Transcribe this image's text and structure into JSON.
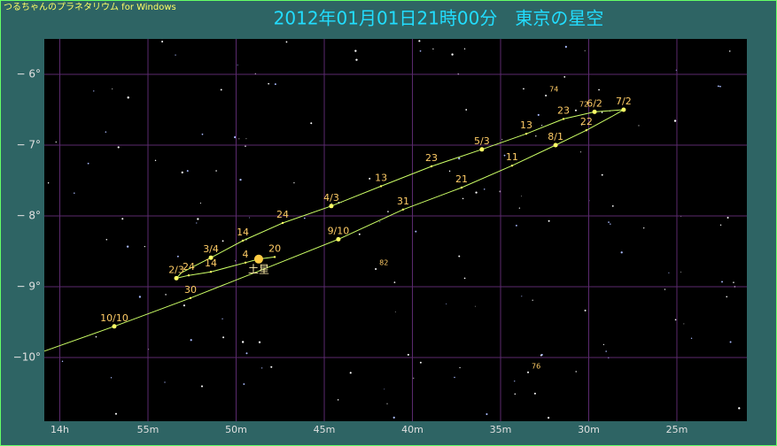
{
  "app_title": "つるちゃんのプラネタリウム for Windows",
  "chart_data": {
    "type": "line",
    "title": "2012年01月01日21時00分　東京の星空",
    "xlim": [
      60.88,
      21.03
    ],
    "ylim": [
      -5.5,
      -10.9
    ],
    "xticks": [
      {
        "value": 60,
        "label": "14h"
      },
      {
        "value": 55,
        "label": "55m"
      },
      {
        "value": 50,
        "label": "50m"
      },
      {
        "value": 45,
        "label": "45m"
      },
      {
        "value": 40,
        "label": "40m"
      },
      {
        "value": 35,
        "label": "35m"
      },
      {
        "value": 30,
        "label": "30m"
      },
      {
        "value": 25,
        "label": "25m"
      }
    ],
    "yticks": [
      {
        "value": -6,
        "label": "− 6°"
      },
      {
        "value": -7,
        "label": "− 7°"
      },
      {
        "value": -8,
        "label": "− 8°"
      },
      {
        "value": -9,
        "label": "− 9°"
      },
      {
        "value": -10,
        "label": "−10°"
      }
    ],
    "grid": true,
    "line_color": "#ccff66",
    "x": [
      47.81,
      48.72,
      49.47,
      51.43,
      52.69,
      53.39,
      53.09,
      51.43,
      49.62,
      47.36,
      44.6,
      41.78,
      38.92,
      36.06,
      33.54,
      31.43,
      29.67,
      28.02,
      28.72,
      30.13,
      31.88,
      34.35,
      37.21,
      40.53,
      44.2,
      48.32,
      52.59,
      56.91,
      60.88
    ],
    "y": [
      -8.58,
      -8.61,
      -8.66,
      -8.79,
      -8.84,
      -8.88,
      -8.8,
      -8.59,
      -8.35,
      -8.1,
      -7.86,
      -7.58,
      -7.3,
      -7.06,
      -6.84,
      -6.63,
      -6.53,
      -6.5,
      -6.6,
      -6.79,
      -7.0,
      -7.29,
      -7.6,
      -7.91,
      -8.33,
      -8.74,
      -9.16,
      -9.56,
      -9.91
    ],
    "point_labels": [
      "20",
      null,
      "4",
      "14",
      "24",
      "2/3",
      null,
      "3/4",
      "14",
      "24",
      "4/3",
      "13",
      "23",
      "5/3",
      "13",
      "23",
      "6/2",
      "7/2",
      null,
      "22",
      "8/1",
      "11",
      "21",
      "31",
      "9/10",
      null,
      "30",
      "10/10",
      null
    ],
    "saturn": {
      "label": "土星",
      "x": 48.72,
      "y": -8.61
    },
    "stars": [
      {
        "label": "74",
        "x": 32.43,
        "y": -6.3
      },
      {
        "label": "72",
        "x": 30.73,
        "y": -6.51
      },
      {
        "label": "82",
        "x": 42.08,
        "y": -8.75
      },
      {
        "label": "76",
        "x": 33.44,
        "y": -10.21
      }
    ]
  }
}
